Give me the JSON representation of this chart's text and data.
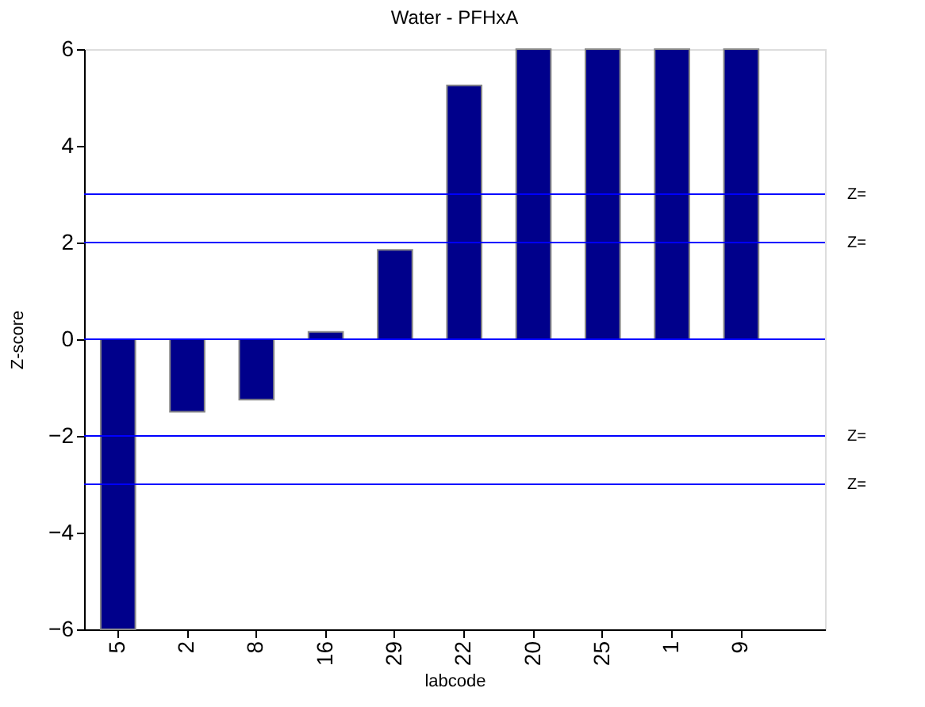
{
  "chart_data": {
    "type": "bar",
    "title": "Water - PFHxA",
    "xlabel": "labcode",
    "ylabel": "Z-score",
    "categories": [
      "5",
      "2",
      "8",
      "16",
      "29",
      "22",
      "20",
      "25",
      "1",
      "9"
    ],
    "values": [
      -6,
      -1.5,
      -1.25,
      0.15,
      1.85,
      5.25,
      6,
      6,
      6,
      6
    ],
    "color": "#00008b",
    "ylim": [
      -6,
      6
    ],
    "yticks": [
      -6,
      -4,
      -2,
      0,
      2,
      4,
      6
    ],
    "grid": false,
    "ref_lines": [
      {
        "axis": "y",
        "value": 3,
        "label": "Z=",
        "color": "#0000ff"
      },
      {
        "axis": "y",
        "value": 2,
        "label": "Z=",
        "color": "#0000ff"
      },
      {
        "axis": "y",
        "value": 0,
        "color": "#0000ff"
      },
      {
        "axis": "y",
        "value": -2,
        "label": "Z=",
        "color": "#0000ff"
      },
      {
        "axis": "y",
        "value": -3,
        "label": "Z=",
        "color": "#0000ff"
      }
    ]
  }
}
